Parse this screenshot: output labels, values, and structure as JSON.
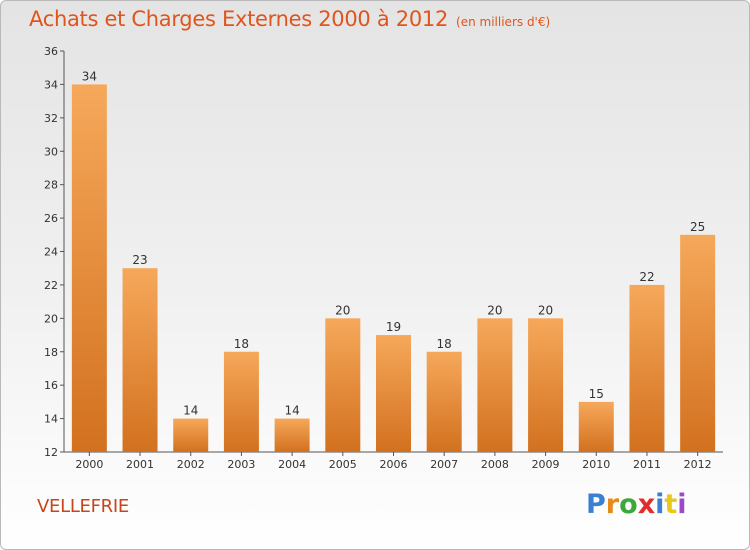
{
  "header": {
    "title": "Achats et Charges Externes 2000 à 2012",
    "unit": "(en milliers d'€)"
  },
  "footer": {
    "commune": "VELLEFRIE",
    "logo_text": "Proxiti",
    "logo_colors": [
      "#3a7fd0",
      "#e8891a",
      "#3aa83a",
      "#e02c2c",
      "#3a7fd0",
      "#e8c81a",
      "#9a4ac8"
    ]
  },
  "colors": {
    "bar_light": "#f6a85a",
    "bar_dark": "#d2711f",
    "axis": "#555555",
    "label": "#333333"
  },
  "chart_data": {
    "type": "bar",
    "title": "Achats et Charges Externes 2000 à 2012",
    "subtitle": "(en milliers d'€)",
    "xlabel": "",
    "ylabel": "",
    "categories": [
      "2000",
      "2001",
      "2002",
      "2003",
      "2004",
      "2005",
      "2006",
      "2007",
      "2008",
      "2009",
      "2010",
      "2011",
      "2012"
    ],
    "values": [
      34,
      23,
      14,
      18,
      14,
      20,
      19,
      18,
      20,
      20,
      15,
      22,
      25
    ],
    "ylim": [
      12,
      36
    ],
    "yticks": [
      12,
      14,
      16,
      18,
      20,
      22,
      24,
      26,
      28,
      30,
      32,
      34,
      36
    ],
    "grid": false,
    "legend": "none"
  }
}
